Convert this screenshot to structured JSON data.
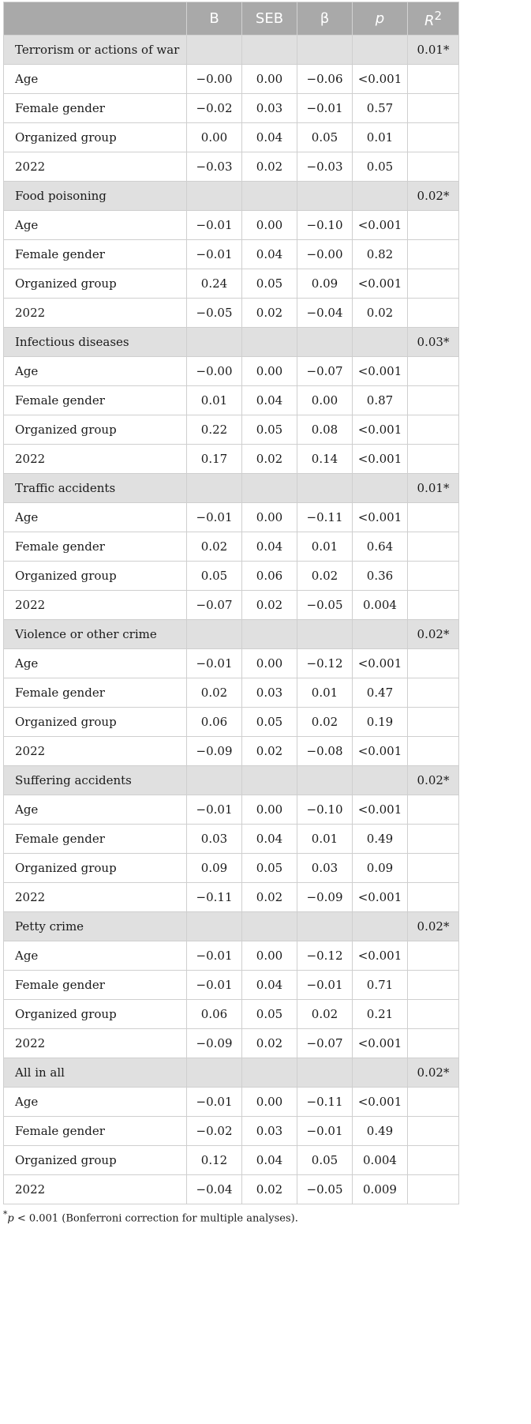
{
  "columns": [
    "",
    "B",
    "SEB",
    "β",
    "p",
    "R2"
  ],
  "groups": [
    {
      "name": "Terrorism or actions of war",
      "r2": "0.01*",
      "rows": [
        [
          "Age",
          "−0.00",
          "0.00",
          "−0.06",
          "<0.001"
        ],
        [
          "Female gender",
          "−0.02",
          "0.03",
          "−0.01",
          "0.57"
        ],
        [
          "Organized group",
          "0.00",
          "0.04",
          "0.05",
          "0.01"
        ],
        [
          "2022",
          "−0.03",
          "0.02",
          "−0.03",
          "0.05"
        ]
      ]
    },
    {
      "name": "Food poisoning",
      "r2": "0.02*",
      "rows": [
        [
          "Age",
          "−0.01",
          "0.00",
          "−0.10",
          "<0.001"
        ],
        [
          "Female gender",
          "−0.01",
          "0.04",
          "−0.00",
          "0.82"
        ],
        [
          "Organized group",
          "0.24",
          "0.05",
          "0.09",
          "<0.001"
        ],
        [
          "2022",
          "−0.05",
          "0.02",
          "−0.04",
          "0.02"
        ]
      ]
    },
    {
      "name": "Infectious diseases",
      "r2": "0.03*",
      "rows": [
        [
          "Age",
          "−0.00",
          "0.00",
          "−0.07",
          "<0.001"
        ],
        [
          "Female gender",
          "0.01",
          "0.04",
          "0.00",
          "0.87"
        ],
        [
          "Organized group",
          "0.22",
          "0.05",
          "0.08",
          "<0.001"
        ],
        [
          "2022",
          "0.17",
          "0.02",
          "0.14",
          "<0.001"
        ]
      ]
    },
    {
      "name": "Traffic accidents",
      "r2": "0.01*",
      "rows": [
        [
          "Age",
          "−0.01",
          "0.00",
          "−0.11",
          "<0.001"
        ],
        [
          "Female gender",
          "0.02",
          "0.04",
          "0.01",
          "0.64"
        ],
        [
          "Organized group",
          "0.05",
          "0.06",
          "0.02",
          "0.36"
        ],
        [
          "2022",
          "−0.07",
          "0.02",
          "−0.05",
          "0.004"
        ]
      ]
    },
    {
      "name": "Violence or other crime",
      "r2": "0.02*",
      "rows": [
        [
          "Age",
          "−0.01",
          "0.00",
          "−0.12",
          "<0.001"
        ],
        [
          "Female gender",
          "0.02",
          "0.03",
          "0.01",
          "0.47"
        ],
        [
          "Organized group",
          "0.06",
          "0.05",
          "0.02",
          "0.19"
        ],
        [
          "2022",
          "−0.09",
          "0.02",
          "−0.08",
          "<0.001"
        ]
      ]
    },
    {
      "name": "Suffering accidents",
      "r2": "0.02*",
      "rows": [
        [
          "Age",
          "−0.01",
          "0.00",
          "−0.10",
          "<0.001"
        ],
        [
          "Female gender",
          "0.03",
          "0.04",
          "0.01",
          "0.49"
        ],
        [
          "Organized group",
          "0.09",
          "0.05",
          "0.03",
          "0.09"
        ],
        [
          "2022",
          "−0.11",
          "0.02",
          "−0.09",
          "<0.001"
        ]
      ]
    },
    {
      "name": "Petty crime",
      "r2": "0.02*",
      "rows": [
        [
          "Age",
          "−0.01",
          "0.00",
          "−0.12",
          "<0.001"
        ],
        [
          "Female gender",
          "−0.01",
          "0.04",
          "−0.01",
          "0.71"
        ],
        [
          "Organized group",
          "0.06",
          "0.05",
          "0.02",
          "0.21"
        ],
        [
          "2022",
          "−0.09",
          "0.02",
          "−0.07",
          "<0.001"
        ]
      ]
    },
    {
      "name": "All in all",
      "r2": "0.02*",
      "rows": [
        [
          "Age",
          "−0.01",
          "0.00",
          "−0.11",
          "<0.001"
        ],
        [
          "Female gender",
          "−0.02",
          "0.03",
          "−0.01",
          "0.49"
        ],
        [
          "Organized group",
          "0.12",
          "0.04",
          "0.05",
          "0.004"
        ],
        [
          "2022",
          "−0.04",
          "0.02",
          "−0.05",
          "0.009"
        ]
      ]
    }
  ],
  "footnote": {
    "mark": "*",
    "p_symbol": "p",
    "text": " < 0.001 (Bonferroni correction for multiple analyses)."
  }
}
